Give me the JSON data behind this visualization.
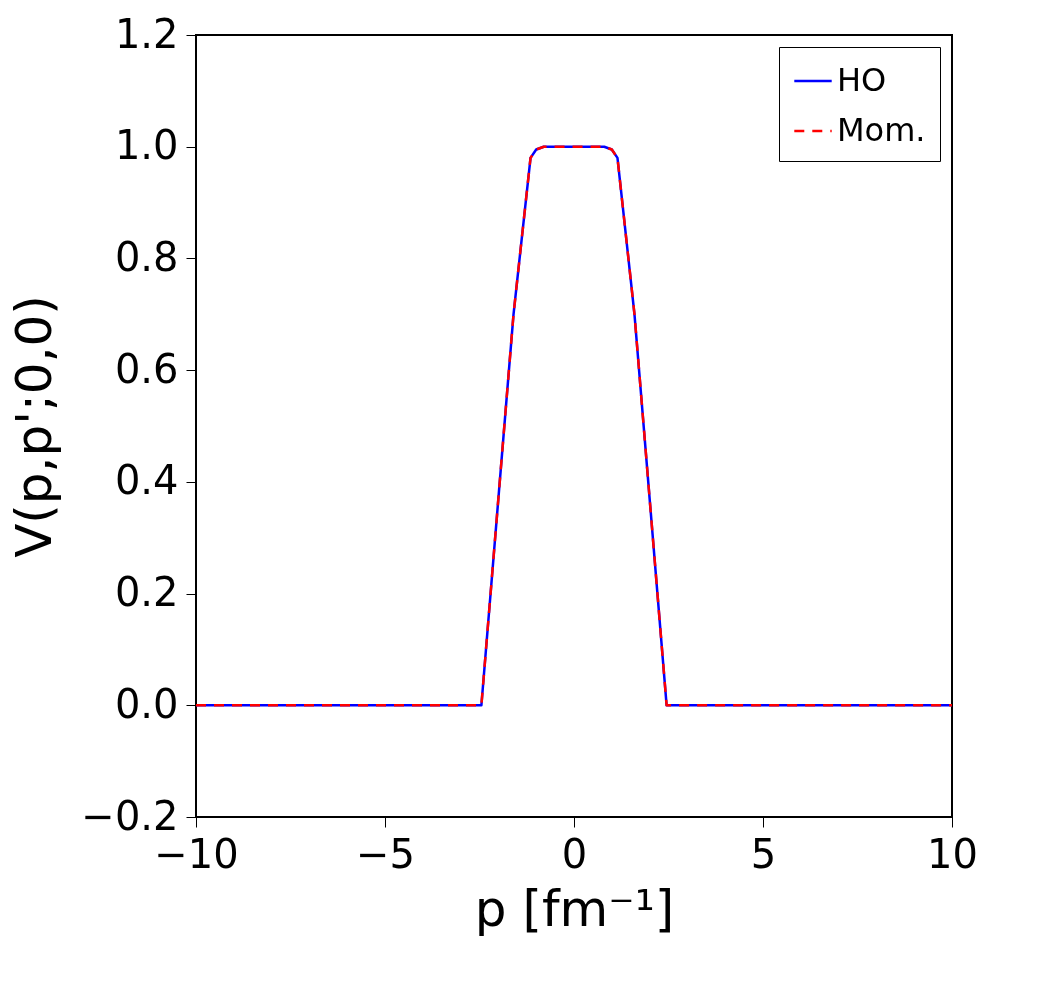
{
  "chart_data": {
    "type": "line",
    "xlabel": "p [fm⁻¹]",
    "ylabel": "V(p,p';0,0)",
    "x": [
      -10,
      -2.45,
      -1.6,
      -1.15,
      -1.0,
      -0.8,
      0.8,
      1.0,
      1.15,
      1.6,
      2.45,
      10
    ],
    "series": [
      {
        "name": "HO",
        "color": "#0000ff",
        "line_style": "solid",
        "values": [
          0,
          0,
          0.7,
          0.98,
          0.995,
          1,
          1,
          0.995,
          0.98,
          0.7,
          0,
          0
        ]
      },
      {
        "name": "Mom.",
        "color": "#ff0000",
        "line_style": "dashed",
        "values": [
          0,
          0,
          0.7,
          0.98,
          0.995,
          1,
          1,
          0.995,
          0.98,
          0.7,
          0,
          0
        ]
      }
    ],
    "xlim": [
      -10,
      10
    ],
    "xticks": [
      -10,
      -5,
      0,
      5,
      10
    ],
    "ylim": [
      -0.2,
      1.2
    ],
    "yticks": [
      -0.2,
      {
        "value": 0,
        "label": "0.0"
      },
      0.2,
      0.4,
      0.6,
      0.8,
      {
        "value": 1,
        "label": "1.0"
      },
      1.2
    ],
    "grid": false,
    "legend": "top right"
  }
}
